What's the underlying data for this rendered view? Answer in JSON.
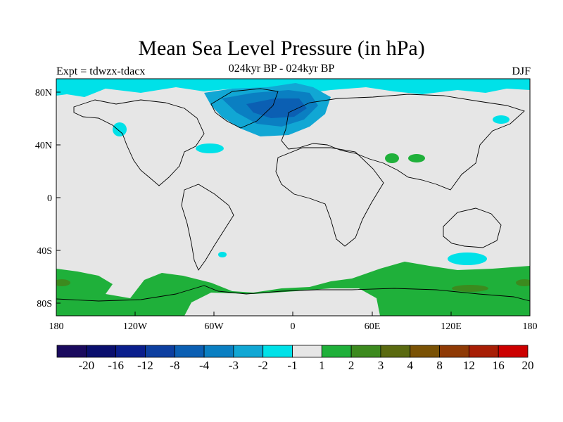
{
  "figure": {
    "title": "Mean Sea Level Pressure (in hPa)",
    "subtitle": "024kyr BP - 024kyr BP",
    "experiment": "Expt = tdwzx-tdacx",
    "season": "DJF"
  },
  "axes": {
    "x_ticks": [
      "180",
      "120W",
      "60W",
      "0",
      "60E",
      "120E",
      "180"
    ],
    "y_ticks": [
      "80N",
      "40N",
      "0",
      "40S",
      "80S"
    ]
  },
  "colorbar": {
    "labels": [
      "-20",
      "-16",
      "-12",
      "-8",
      "-4",
      "-3",
      "-2",
      "-1",
      "1",
      "2",
      "3",
      "4",
      "8",
      "12",
      "16",
      "20"
    ],
    "colors": [
      "#1a0a5e",
      "#0a0f6e",
      "#0a1e8c",
      "#0d3fa0",
      "#0b5fb3",
      "#0a7fc2",
      "#11a7d4",
      "#00e1e8",
      "#e6e6e6",
      "#1fb03a",
      "#3c8a1e",
      "#5a6a10",
      "#7a5205",
      "#8f3a05",
      "#a81e05",
      "#cc0000"
    ]
  },
  "palette": {
    "ocean": "#e6e6e6",
    "coast": "#000000"
  }
}
